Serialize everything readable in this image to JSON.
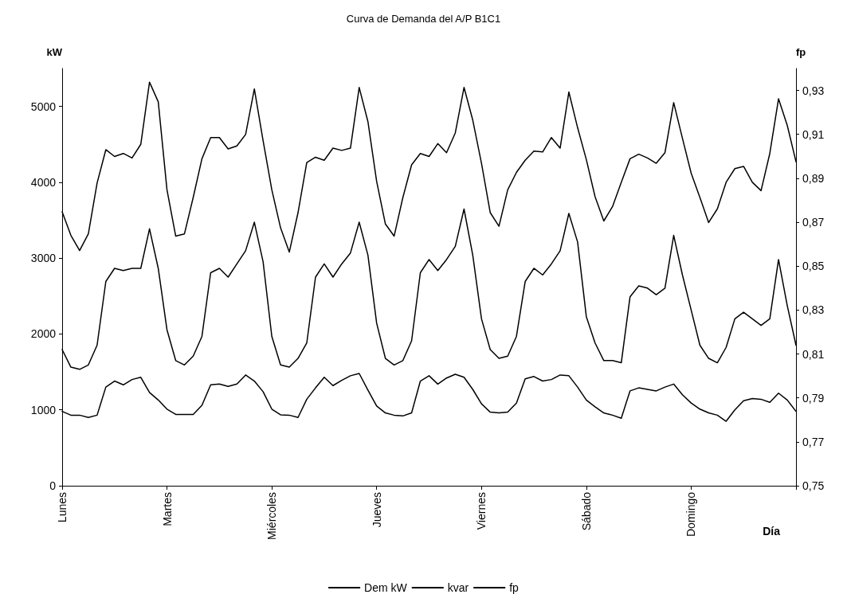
{
  "chart_data": {
    "type": "line",
    "title": "Curva de Demanda del A/P B1C1",
    "ylabel": "kW",
    "y2label": "fp",
    "xlabel": "Día",
    "categories": [
      "Lunes",
      null,
      null,
      null,
      null,
      null,
      null,
      null,
      null,
      null,
      null,
      null,
      "Martes",
      null,
      null,
      null,
      null,
      null,
      null,
      null,
      null,
      null,
      null,
      null,
      "Miércoles",
      null,
      null,
      null,
      null,
      null,
      null,
      null,
      null,
      null,
      null,
      null,
      "Jueves",
      null,
      null,
      null,
      null,
      null,
      null,
      null,
      null,
      null,
      null,
      null,
      "Viernes",
      null,
      null,
      null,
      null,
      null,
      null,
      null,
      null,
      null,
      null,
      null,
      "Sábado",
      null,
      null,
      null,
      null,
      null,
      null,
      null,
      null,
      null,
      null,
      null,
      "Domingo",
      null,
      null,
      null,
      null,
      null,
      null,
      null,
      null,
      null,
      null,
      null,
      null
    ],
    "ylim": [
      0,
      5500
    ],
    "yticks": [
      0,
      1000,
      2000,
      3000,
      4000,
      5000
    ],
    "y2lim": [
      0.75,
      0.94
    ],
    "y2ticks": [
      {
        "value": 0.75,
        "label": "0,75"
      },
      {
        "value": 0.77,
        "label": "0,77"
      },
      {
        "value": 0.79,
        "label": "0,79"
      },
      {
        "value": 0.81,
        "label": "0,81"
      },
      {
        "value": 0.83,
        "label": "0,83"
      },
      {
        "value": 0.85,
        "label": "0,85"
      },
      {
        "value": 0.87,
        "label": "0,87"
      },
      {
        "value": 0.89,
        "label": "0,89"
      },
      {
        "value": 0.91,
        "label": "0,91"
      },
      {
        "value": 0.93,
        "label": "0,93"
      }
    ],
    "grid": false,
    "legend": "bottom",
    "marker": "none",
    "line_style": "solid",
    "series": [
      {
        "name": "Dem kW",
        "color": "#000000",
        "values": [
          3610,
          3300,
          3100,
          3320,
          3990,
          4430,
          4340,
          4380,
          4320,
          4500,
          5320,
          5060,
          3900,
          3290,
          3320,
          3800,
          4310,
          4590,
          4590,
          4440,
          4480,
          4630,
          5230,
          4550,
          3900,
          3400,
          3080,
          3600,
          4260,
          4330,
          4290,
          4450,
          4420,
          4450,
          5250,
          4800,
          4010,
          3450,
          3290,
          3800,
          4230,
          4380,
          4340,
          4510,
          4390,
          4650,
          5250,
          4820,
          4250,
          3600,
          3420,
          3900,
          4130,
          4290,
          4410,
          4400,
          4590,
          4450,
          5190,
          4720,
          4300,
          3810,
          3490,
          3680,
          4000,
          4310,
          4370,
          4320,
          4250,
          4390,
          5050,
          4580,
          4120,
          3800,
          3470,
          3650,
          4000,
          4180,
          4210,
          4000,
          3890,
          4380,
          5100,
          4750,
          4270
        ]
      },
      {
        "name": "kvar",
        "color": "#000000",
        "values": [
          980,
          930,
          930,
          900,
          930,
          1300,
          1380,
          1330,
          1400,
          1430,
          1230,
          1130,
          1010,
          940,
          940,
          940,
          1060,
          1330,
          1340,
          1310,
          1340,
          1460,
          1380,
          1240,
          1010,
          935,
          930,
          900,
          1140,
          1290,
          1430,
          1320,
          1390,
          1450,
          1480,
          1260,
          1050,
          960,
          930,
          920,
          960,
          1380,
          1450,
          1340,
          1420,
          1470,
          1430,
          1270,
          1080,
          970,
          960,
          970,
          1090,
          1410,
          1440,
          1380,
          1400,
          1460,
          1450,
          1300,
          1130,
          1040,
          960,
          930,
          890,
          1250,
          1290,
          1270,
          1250,
          1300,
          1340,
          1200,
          1090,
          1010,
          960,
          930,
          850,
          1000,
          1120,
          1150,
          1140,
          1100,
          1220,
          1130,
          980
        ]
      },
      {
        "name": "fp",
        "color": "#000000",
        "axis": "y2",
        "values": [
          0.812,
          0.804,
          0.803,
          0.805,
          0.814,
          0.843,
          0.849,
          0.848,
          0.849,
          0.849,
          0.867,
          0.849,
          0.821,
          0.807,
          0.805,
          0.809,
          0.818,
          0.847,
          0.849,
          0.845,
          0.851,
          0.857,
          0.87,
          0.852,
          0.818,
          0.805,
          0.804,
          0.808,
          0.815,
          0.845,
          0.851,
          0.845,
          0.851,
          0.856,
          0.87,
          0.855,
          0.824,
          0.808,
          0.805,
          0.807,
          0.816,
          0.847,
          0.853,
          0.848,
          0.853,
          0.859,
          0.876,
          0.855,
          0.826,
          0.812,
          0.808,
          0.809,
          0.818,
          0.843,
          0.849,
          0.846,
          0.851,
          0.857,
          0.874,
          0.861,
          0.827,
          0.815,
          0.807,
          0.807,
          0.806,
          0.836,
          0.841,
          0.84,
          0.837,
          0.84,
          0.864,
          0.846,
          0.83,
          0.814,
          0.808,
          0.806,
          0.813,
          0.826,
          0.829,
          0.826,
          0.823,
          0.826,
          0.853,
          0.832,
          0.814
        ]
      }
    ]
  }
}
